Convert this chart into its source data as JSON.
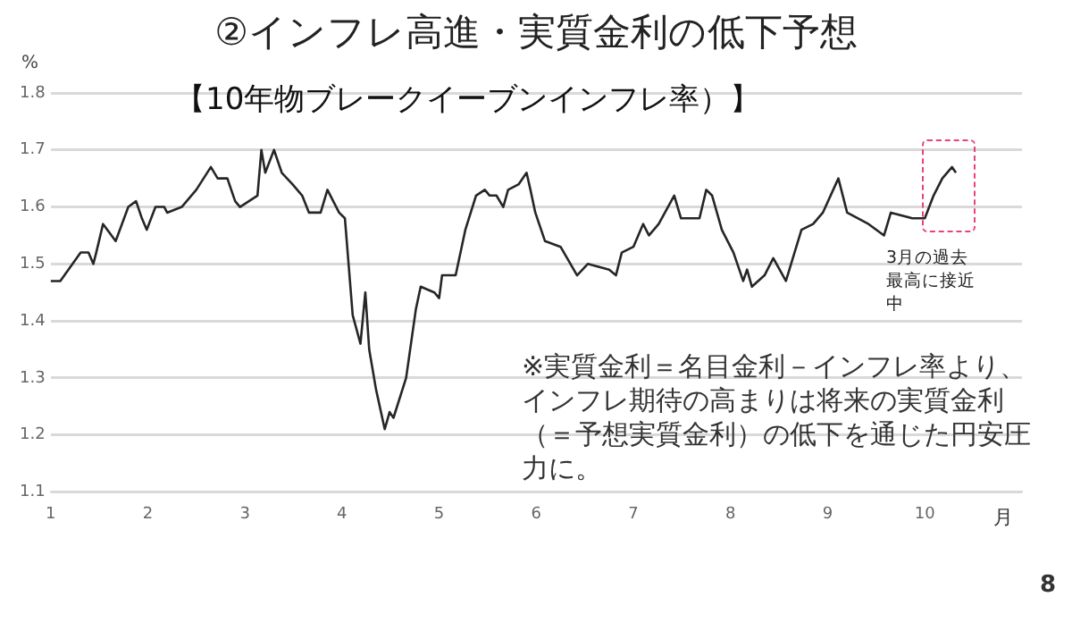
{
  "chart_data": {
    "type": "line",
    "title": "②インフレ高進・実質金利の低下予想",
    "subtitle": "【10年物ブレークイーブンインフレ率）】",
    "ylabel": "%",
    "xlabel": "月",
    "x": [
      1,
      1.1,
      1.31,
      1.39,
      1.44,
      1.47,
      1.54,
      1.67,
      1.8,
      1.88,
      1.94,
      1.99,
      2.08,
      2.17,
      2.2,
      2.35,
      2.5,
      2.65,
      2.72,
      2.82,
      2.9,
      2.95,
      3.13,
      3.17,
      3.21,
      3.3,
      3.38,
      3.49,
      3.59,
      3.66,
      3.78,
      3.85,
      3.97,
      4.03,
      4.11,
      4.19,
      4.24,
      4.28,
      4.35,
      4.44,
      4.49,
      4.53,
      4.66,
      4.76,
      4.81,
      4.95,
      5.0,
      5.03,
      5.17,
      5.27,
      5.38,
      5.47,
      5.52,
      5.59,
      5.66,
      5.71,
      5.82,
      5.9,
      5.94,
      5.99,
      6.09,
      6.25,
      6.42,
      6.53,
      6.75,
      6.82,
      6.88,
      7.0,
      7.1,
      7.16,
      7.26,
      7.42,
      7.49,
      7.68,
      7.75,
      7.81,
      7.91,
      8.03,
      8.13,
      8.17,
      8.22,
      8.35,
      8.44,
      8.57,
      8.73,
      8.85,
      8.95,
      9.11,
      9.2,
      9.42,
      9.58,
      9.65,
      9.87,
      10.0,
      10.09,
      10.18,
      10.28,
      10.32
    ],
    "series": [
      {
        "color": "#262626",
        "values": [
          1.47,
          1.47,
          1.52,
          1.52,
          1.5,
          1.52,
          1.57,
          1.54,
          1.6,
          1.61,
          1.58,
          1.56,
          1.6,
          1.6,
          1.59,
          1.6,
          1.63,
          1.67,
          1.65,
          1.65,
          1.61,
          1.6,
          1.62,
          1.7,
          1.66,
          1.7,
          1.66,
          1.64,
          1.62,
          1.59,
          1.59,
          1.63,
          1.59,
          1.58,
          1.41,
          1.36,
          1.45,
          1.35,
          1.28,
          1.21,
          1.24,
          1.23,
          1.3,
          1.42,
          1.46,
          1.45,
          1.44,
          1.48,
          1.48,
          1.56,
          1.62,
          1.63,
          1.62,
          1.62,
          1.6,
          1.63,
          1.64,
          1.66,
          1.63,
          1.59,
          1.54,
          1.53,
          1.48,
          1.5,
          1.49,
          1.48,
          1.52,
          1.53,
          1.57,
          1.55,
          1.57,
          1.62,
          1.58,
          1.58,
          1.63,
          1.62,
          1.56,
          1.52,
          1.47,
          1.49,
          1.46,
          1.48,
          1.51,
          1.47,
          1.56,
          1.57,
          1.59,
          1.65,
          1.59,
          1.57,
          1.55,
          1.59,
          1.58,
          1.58,
          1.62,
          1.65,
          1.67,
          1.66
        ]
      }
    ],
    "xlim": [
      1,
      11
    ],
    "xticks": [
      1,
      2,
      3,
      4,
      5,
      6,
      7,
      8,
      9,
      10
    ],
    "ylim": [
      1.1,
      1.8
    ],
    "yticks": [
      1.1,
      1.2,
      1.3,
      1.4,
      1.5,
      1.6,
      1.7,
      1.8
    ],
    "grid": "y",
    "legend": false,
    "marker": "none",
    "line_style": "solid",
    "annotations": [
      "※実質金利＝名目金利－インフレ率より、インフレ期待の高まりは将来の実質金利（＝予想実質金利）の低下を通じた円安圧力に。",
      "3月の過去最高に接近中",
      "8"
    ]
  }
}
